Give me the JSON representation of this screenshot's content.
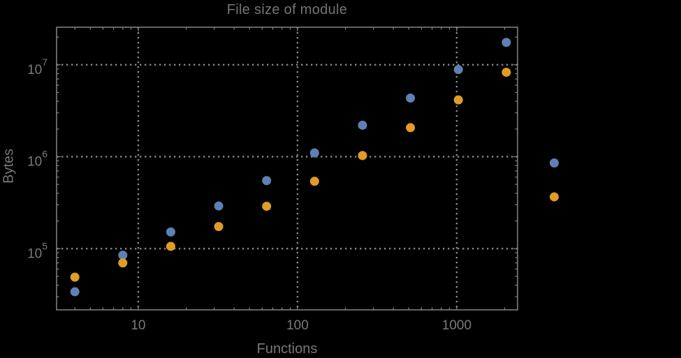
{
  "page": {
    "background": "#000000"
  },
  "chart_data": {
    "type": "scatter",
    "title": "File size of module",
    "xlabel": "Functions",
    "ylabel": "Bytes",
    "x_scale": "log",
    "y_scale": "log",
    "grid": "dotted",
    "legend": "none",
    "xlim": [
      3.07,
      2410
    ],
    "ylim": [
      21600,
      25600000
    ],
    "x": [
      4,
      8,
      16,
      32,
      64,
      128,
      256,
      512,
      1024,
      2048,
      4096
    ],
    "series": [
      {
        "name": "blue",
        "color": "#5E81B5",
        "values": [
          34000,
          85000,
          152000,
          291000,
          550000,
          1100000,
          2200000,
          4340000,
          8870000,
          17500000,
          855000
        ]
      },
      {
        "name": "orange",
        "color": "#E19C24",
        "values": [
          49000,
          70000,
          106000,
          174000,
          289000,
          540000,
          1030000,
          2070000,
          4150000,
          8280000,
          366000
        ]
      }
    ],
    "x_ticks": [
      10,
      100,
      1000
    ],
    "x_tick_labels": [
      "10",
      "100",
      "1000"
    ],
    "y_ticks": [
      100000,
      1000000,
      10000000
    ],
    "y_tick_mantissa": "10",
    "y_tick_exponents": [
      "5",
      "6",
      "7"
    ],
    "colors": {
      "axis": "#868686",
      "tick_label": "#7a7a7a",
      "title": "#747474",
      "axis_label": "#787878"
    }
  }
}
